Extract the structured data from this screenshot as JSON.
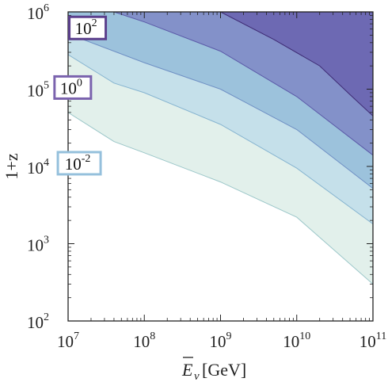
{
  "chart_data": {
    "type": "area",
    "subtype": "contour",
    "xlabel": "E̅_ν[GeV]",
    "xlabel_main": "E",
    "xlabel_sub": "ν",
    "xlabel_unit": "[GeV]",
    "ylabel": "1+z",
    "x_scale": "log",
    "y_scale": "log",
    "xlim": [
      10000000.0,
      100000000000.0
    ],
    "ylim": [
      100,
      1000000.0
    ],
    "x_ticks": [
      {
        "value": 10000000.0,
        "base": "10",
        "exp": "7"
      },
      {
        "value": 100000000.0,
        "base": "10",
        "exp": "8"
      },
      {
        "value": 1000000000.0,
        "base": "10",
        "exp": "9"
      },
      {
        "value": 10000000000.0,
        "base": "10",
        "exp": "10"
      },
      {
        "value": 100000000000.0,
        "base": "10",
        "exp": "11"
      }
    ],
    "y_ticks": [
      {
        "value": 100,
        "base": "10",
        "exp": "2"
      },
      {
        "value": 1000,
        "base": "10",
        "exp": "3"
      },
      {
        "value": 10000,
        "base": "10",
        "exp": "4"
      },
      {
        "value": 100000,
        "base": "10",
        "exp": "5"
      },
      {
        "value": 1000000,
        "base": "10",
        "exp": "6"
      }
    ],
    "contour_boundaries": [
      {
        "name": "b1",
        "points": [
          [
            10000000.0,
            50000
          ],
          [
            40000000.0,
            21000
          ],
          [
            100000000.0,
            15000
          ],
          [
            1000000000.0,
            6300
          ],
          [
            10000000000.0,
            2200
          ],
          [
            100000000000.0,
            300
          ]
        ]
      },
      {
        "name": "b2",
        "points": [
          [
            10000000.0,
            280000
          ],
          [
            40000000.0,
            120000
          ],
          [
            100000000.0,
            90000
          ],
          [
            1000000000.0,
            35000
          ],
          [
            10000000000.0,
            9500
          ],
          [
            100000000000.0,
            1800
          ]
        ]
      },
      {
        "name": "b3",
        "points": [
          [
            10000000.0,
            520000
          ],
          [
            100000000.0,
            220000
          ],
          [
            1000000000.0,
            100000
          ],
          [
            10000000000.0,
            30000
          ],
          [
            100000000000.0,
            5200
          ]
        ]
      },
      {
        "name": "b4",
        "points": [
          [
            40000000.0,
            1000000.0
          ],
          [
            100000000.0,
            740000
          ],
          [
            1000000000.0,
            310000
          ],
          [
            10000000000.0,
            80000
          ],
          [
            100000000000.0,
            14000
          ]
        ]
      },
      {
        "name": "b5",
        "points": [
          [
            1000000000.0,
            1000000.0
          ],
          [
            5000000000.0,
            440000
          ],
          [
            20000000000.0,
            200000
          ],
          [
            50000000000.0,
            85000
          ],
          [
            100000000000.0,
            45000
          ]
        ]
      }
    ],
    "region_colors": [
      "#ffffff",
      "#e2f0eb",
      "#c5e0ea",
      "#9cc2dc",
      "#8391c9",
      "#6d69b3",
      "#5f4898"
    ],
    "contour_labels": [
      {
        "base": "10",
        "exp": "2",
        "x": 18000000.0,
        "y": 620000,
        "border": "#5b3f8c"
      },
      {
        "base": "10",
        "exp": "0",
        "x": 11500000.0,
        "y": 105000,
        "border": "#7b63ae"
      },
      {
        "base": "10",
        "exp": "-2",
        "x": 14000000.0,
        "y": 11000,
        "border": "#95c0dc"
      }
    ]
  }
}
